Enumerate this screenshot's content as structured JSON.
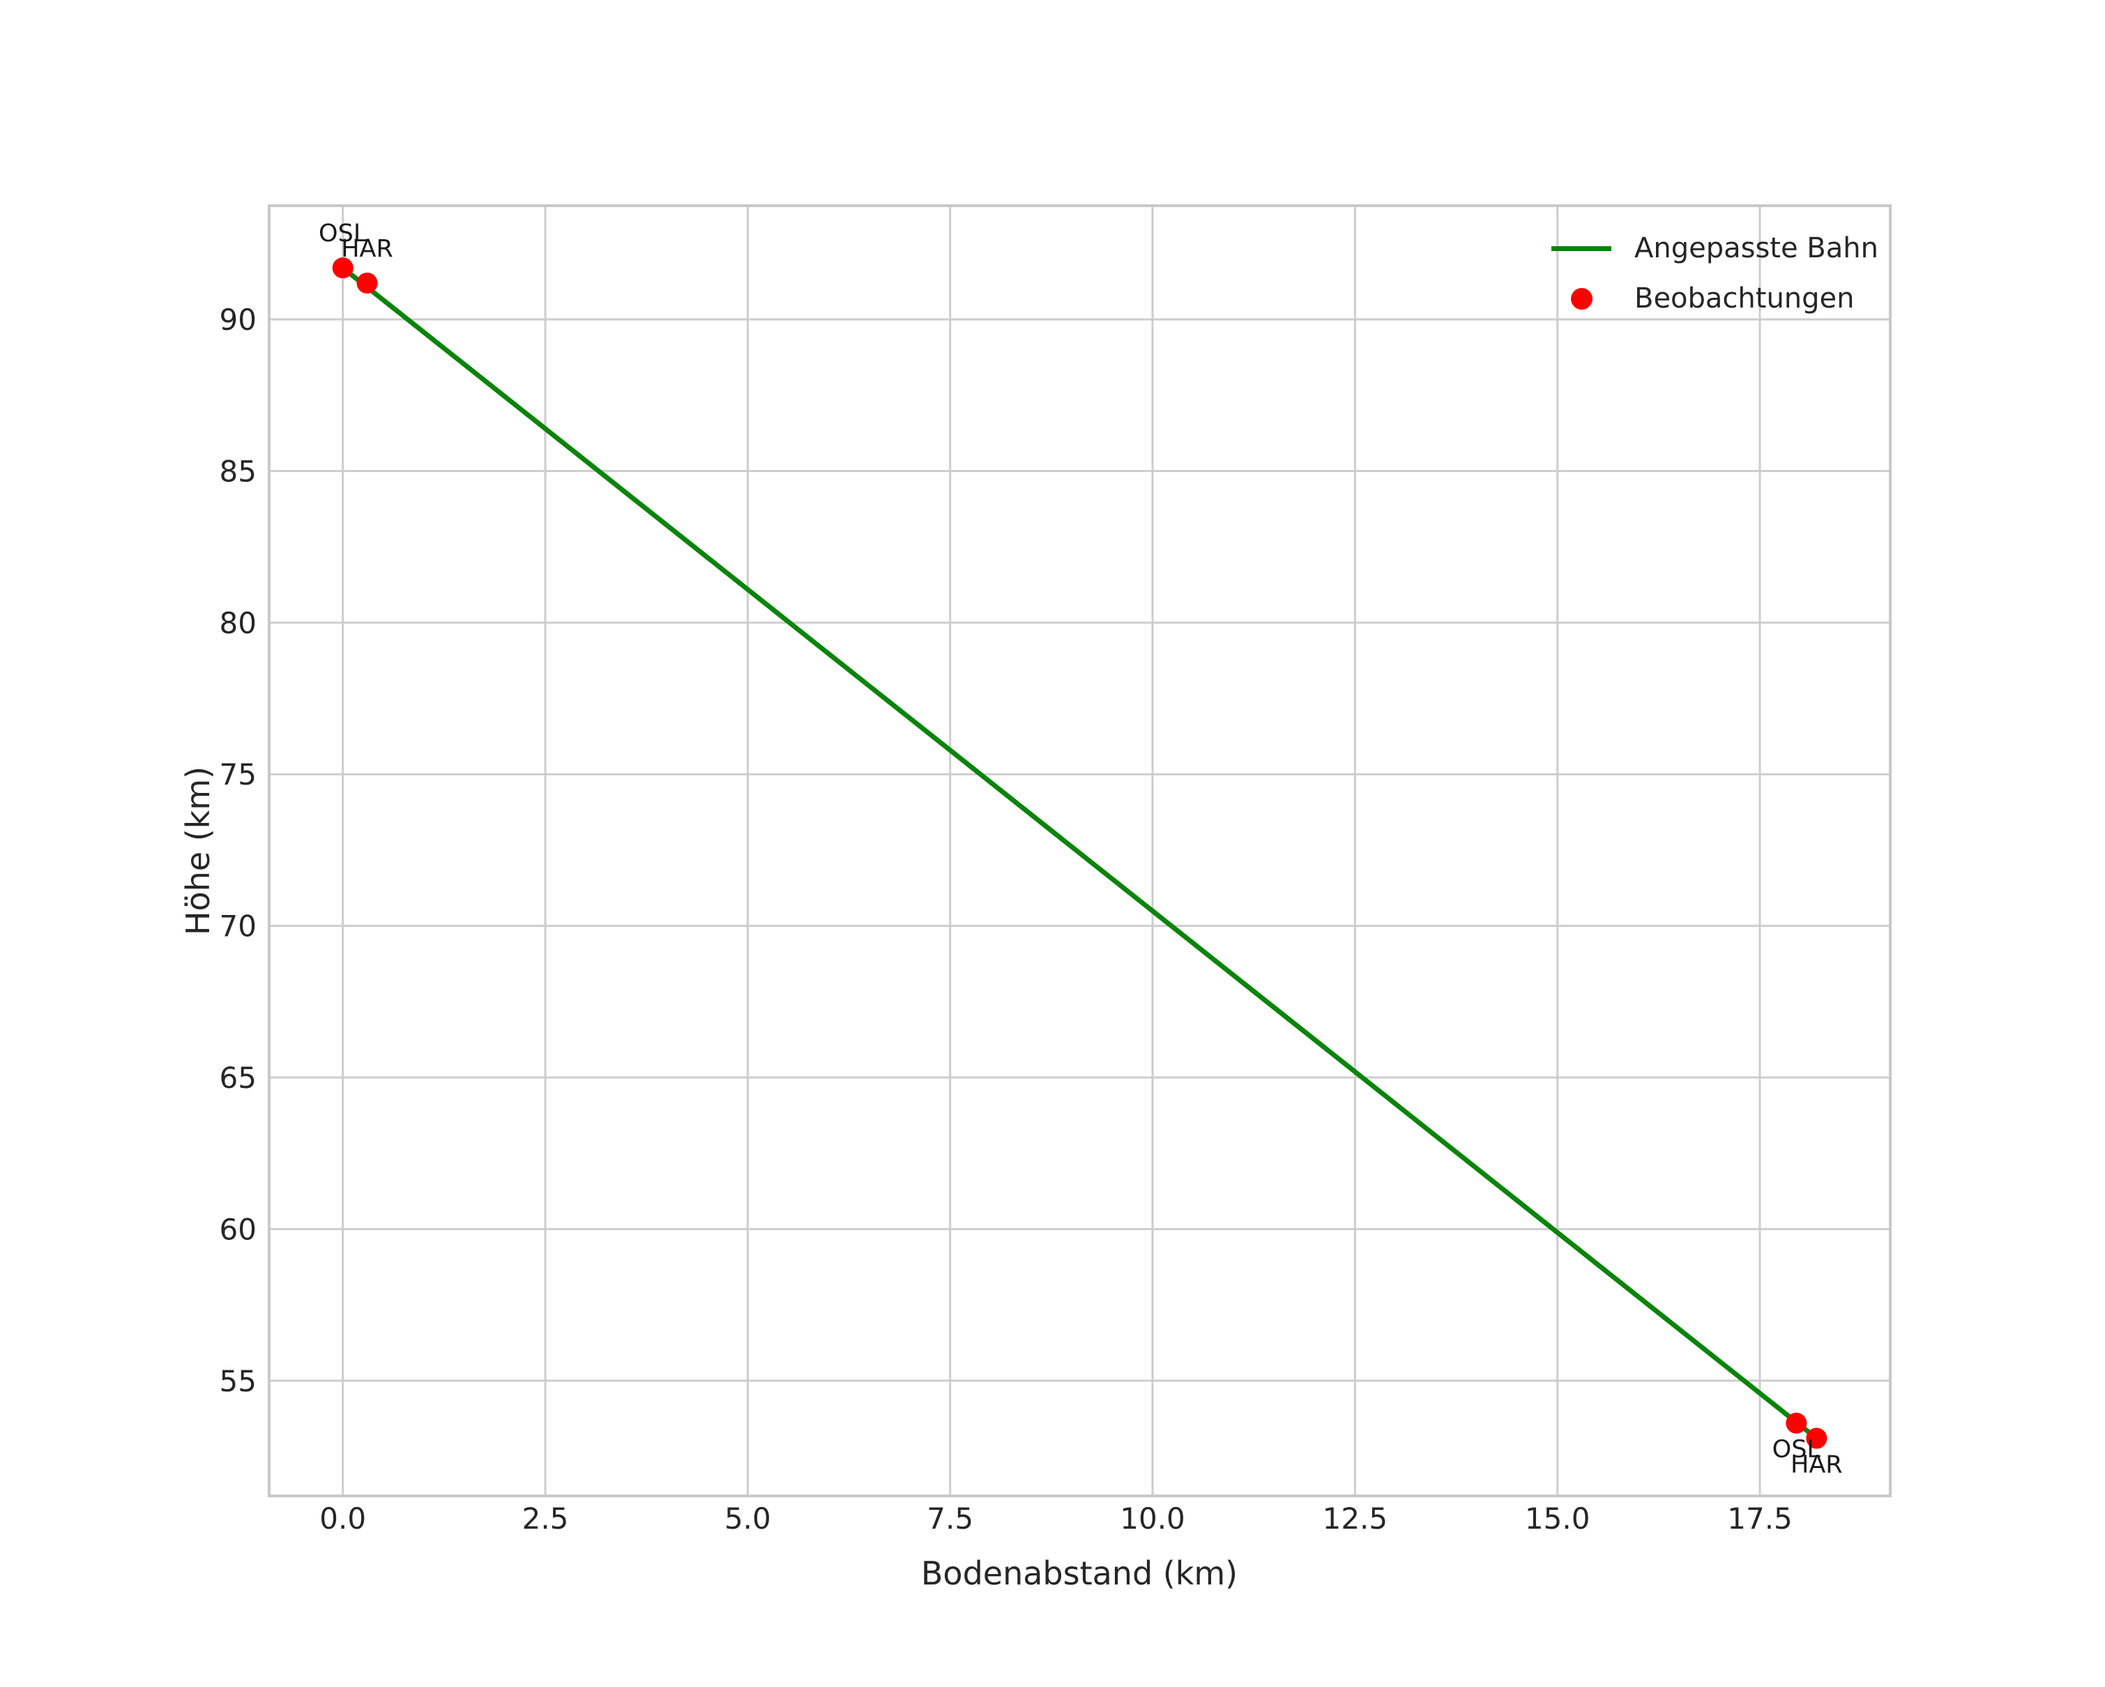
{
  "figure": {
    "background": "#ffffff"
  },
  "chart_data": {
    "type": "line",
    "title": "",
    "xlabel": "Bodenabstand (km)",
    "ylabel": "Höhe (km)",
    "xlim": [
      -0.91,
      19.11
    ],
    "ylim": [
      51.2,
      93.75
    ],
    "grid": true,
    "xticks": [
      {
        "value": 0,
        "label": "0.0"
      },
      {
        "value": 2.5,
        "label": "2.5"
      },
      {
        "value": 5,
        "label": "5.0"
      },
      {
        "value": 7.5,
        "label": "7.5"
      },
      {
        "value": 10,
        "label": "10.0"
      },
      {
        "value": 12.5,
        "label": "12.5"
      },
      {
        "value": 15,
        "label": "15.0"
      },
      {
        "value": 17.5,
        "label": "17.5"
      }
    ],
    "yticks": [
      {
        "value": 55,
        "label": "55"
      },
      {
        "value": 60,
        "label": "60"
      },
      {
        "value": 65,
        "label": "65"
      },
      {
        "value": 70,
        "label": "70"
      },
      {
        "value": 75,
        "label": "75"
      },
      {
        "value": 80,
        "label": "80"
      },
      {
        "value": 85,
        "label": "85"
      },
      {
        "value": 90,
        "label": "90"
      }
    ],
    "legend": {
      "position": "upper right",
      "entries": [
        {
          "label": "Angepasste Bahn",
          "marker": "line",
          "color": "#088408"
        },
        {
          "label": "Beobachtungen",
          "marker": "dot",
          "color": "#ff0000"
        }
      ]
    },
    "series": [
      {
        "name": "Angepasste Bahn",
        "type": "line",
        "color": "#088408",
        "line_width": 7,
        "points": [
          {
            "x": 0.0,
            "y": 91.7
          },
          {
            "x": 18.2,
            "y": 53.1
          }
        ]
      },
      {
        "name": "Beobachtungen",
        "type": "scatter",
        "color": "#ff0000",
        "marker_radius": 15,
        "points": [
          {
            "x": 0.0,
            "y": 91.7,
            "station": "OSL",
            "label_placement": "above"
          },
          {
            "x": 0.3,
            "y": 91.2,
            "station": "HAR",
            "label_placement": "above"
          },
          {
            "x": 17.95,
            "y": 53.6,
            "station": "OSL",
            "label_placement": "below"
          },
          {
            "x": 18.2,
            "y": 53.1,
            "station": "HAR",
            "label_placement": "below"
          }
        ]
      }
    ],
    "style": {
      "grid_color": "#cdcdcd",
      "frame_color": "#c8c8c8",
      "text_color": "#262626",
      "background": "#ffffff"
    }
  }
}
